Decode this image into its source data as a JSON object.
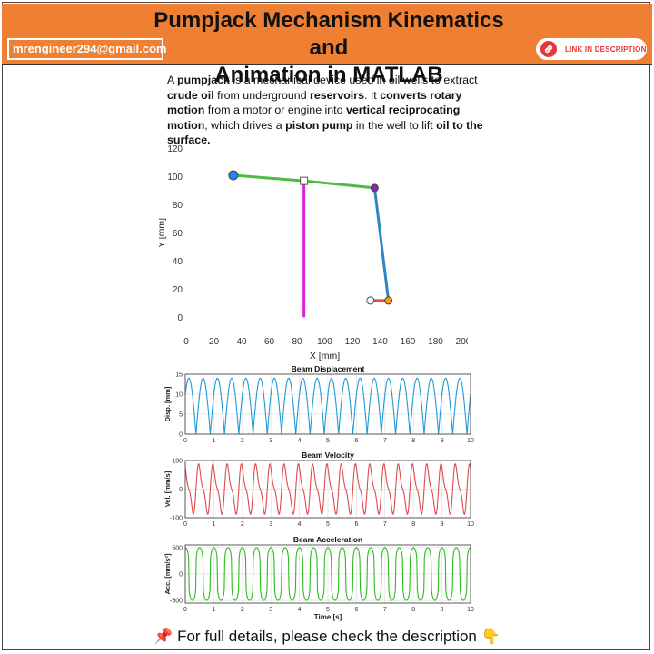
{
  "header": {
    "title_line1": "Pumpjack Mechanism Kinematics and",
    "title_line2": "Animation in MATLAB",
    "email": "mrengineer294@gmail.com",
    "link_label": "LINK IN DESCRIPTION",
    "link_icon": "link-icon",
    "accent_color": "#ef7f32",
    "link_color": "#e53935"
  },
  "intro": {
    "parts": [
      {
        "t": "A ",
        "b": false
      },
      {
        "t": "pumpjack",
        "b": true
      },
      {
        "t": " is a mechanical device used in oil wells to extract ",
        "b": false
      },
      {
        "t": "crude oil",
        "b": true
      },
      {
        "t": " from underground ",
        "b": false
      },
      {
        "t": "reservoirs",
        "b": true
      },
      {
        "t": ". It ",
        "b": false
      },
      {
        "t": "converts rotary motion",
        "b": true
      },
      {
        "t": " from a motor or engine into ",
        "b": false
      },
      {
        "t": "vertical reciprocating motion",
        "b": true
      },
      {
        "t": ", which drives a ",
        "b": false
      },
      {
        "t": "piston pump",
        "b": true
      },
      {
        "t": " in the well to lift ",
        "b": false
      },
      {
        "t": "oil to the surface.",
        "b": true
      }
    ]
  },
  "chart_data": [
    {
      "type": "scatter",
      "xlabel": "X [mm]",
      "ylabel": "Y [mm]",
      "xlim": [
        0,
        200
      ],
      "ylim": [
        -10,
        130
      ],
      "xticks": [
        0,
        20,
        40,
        60,
        80,
        100,
        120,
        140,
        160,
        180,
        200
      ],
      "yticks": [
        0,
        20,
        40,
        60,
        80,
        100,
        120
      ],
      "grid": false,
      "segments": [
        {
          "name": "beam",
          "color": "#4cbb47",
          "points": [
            [
              34,
              101
            ],
            [
              85,
              97
            ],
            [
              136,
              92
            ]
          ]
        },
        {
          "name": "post",
          "color": "#e020e0",
          "points": [
            [
              85,
              97
            ],
            [
              85,
              1
            ]
          ]
        },
        {
          "name": "pitman",
          "color": "#2e86c1",
          "points": [
            [
              136,
              92
            ],
            [
              146,
              12
            ]
          ]
        },
        {
          "name": "crank",
          "color": "#e74c3c",
          "points": [
            [
              133,
              12
            ],
            [
              146,
              12
            ]
          ]
        }
      ],
      "joints": [
        {
          "x": 34,
          "y": 101,
          "color": "#1e88e5"
        },
        {
          "x": 85,
          "y": 97,
          "color": "#ffffff"
        },
        {
          "x": 136,
          "y": 92,
          "color": "#8e24aa"
        },
        {
          "x": 146,
          "y": 12,
          "color": "#f39c12"
        },
        {
          "x": 133,
          "y": 12,
          "color": "#ffffff"
        }
      ]
    },
    {
      "type": "line",
      "title": "Beam Displacement",
      "ylabel": "Disp. [mm]",
      "xlim": [
        0,
        10
      ],
      "ylim": [
        0,
        15
      ],
      "xticks": [
        0,
        1,
        2,
        3,
        4,
        5,
        6,
        7,
        8,
        9,
        10
      ],
      "yticks": [
        0,
        5,
        10,
        15
      ],
      "grid": true,
      "series": [
        {
          "color": "#1f9ad6",
          "wave": "abs-sine",
          "frequency_hz": 2,
          "phase": 0.25,
          "amplitude": 14,
          "offset": 0
        }
      ]
    },
    {
      "type": "line",
      "title": "Beam Velocity",
      "ylabel": "Vel. [mm/s]",
      "xlim": [
        0,
        10
      ],
      "ylim": [
        -100,
        100
      ],
      "xticks": [
        0,
        1,
        2,
        3,
        4,
        5,
        6,
        7,
        8,
        9,
        10
      ],
      "yticks": [
        -100,
        0,
        100
      ],
      "grid": true,
      "series": [
        {
          "color": "#e0494a",
          "wave": "skewed-sine",
          "frequency_hz": 2,
          "phase": 0.25,
          "amplitude": 90,
          "offset": 0
        }
      ]
    },
    {
      "type": "line",
      "title": "Beam Acceleration",
      "xlabel": "Time [s]",
      "ylabel": "Acc. [mm/s²]",
      "xlim": [
        0,
        10
      ],
      "ylim": [
        -550,
        550
      ],
      "xticks": [
        0,
        1,
        2,
        3,
        4,
        5,
        6,
        7,
        8,
        9,
        10
      ],
      "yticks": [
        -500,
        0,
        500
      ],
      "grid": true,
      "series": [
        {
          "color": "#2dbb1f",
          "wave": "square-ish",
          "frequency_hz": 2,
          "phase": 0.25,
          "amplitude": 500,
          "offset": 0
        }
      ]
    }
  ],
  "footer": {
    "pin_icon": "pushpin-icon",
    "text": "For full details, please check the description",
    "pointer_icon": "hand-pointing-down-icon"
  }
}
